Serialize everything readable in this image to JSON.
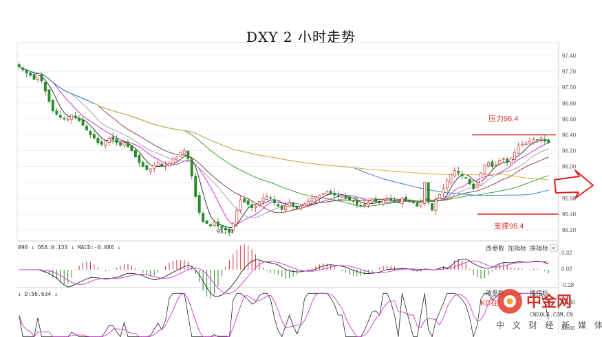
{
  "title": "DXY 2 小时走势",
  "chart_data": {
    "type": "candlestick",
    "title": "DXY 2 小时走势",
    "ylim": [
      95.1,
      97.5
    ],
    "yticks": [
      "97.40",
      "97.20",
      "97.00",
      "96.80",
      "96.60",
      "96.40",
      "96.20",
      "96.00",
      "95.80",
      "95.60",
      "95.40",
      "95.20"
    ],
    "resistance": {
      "label": "压力96.4",
      "value": 96.4
    },
    "support": {
      "label": "支撑95.4",
      "value": 95.4
    },
    "low_annotation": "95.14",
    "price_path": [
      97.26,
      97.22,
      97.18,
      97.15,
      97.1,
      97.17,
      97.08,
      96.95,
      96.82,
      96.7,
      96.66,
      96.62,
      96.6,
      96.6,
      96.65,
      96.62,
      96.58,
      96.52,
      96.46,
      96.4,
      96.36,
      96.3,
      96.28,
      96.32,
      96.36,
      96.34,
      96.3,
      96.27,
      96.3,
      96.25,
      96.2,
      96.12,
      96.05,
      96.0,
      95.96,
      95.97,
      96.02,
      96.05,
      96.0,
      96.02,
      96.04,
      96.1,
      96.12,
      96.18,
      96.2,
      96.1,
      95.88,
      95.62,
      95.42,
      95.3,
      95.28,
      95.25,
      95.3,
      95.25,
      95.22,
      95.2,
      95.18,
      95.28,
      95.45,
      95.58,
      95.55,
      95.52,
      95.48,
      95.5,
      95.56,
      95.6,
      95.62,
      95.6,
      95.54,
      95.5,
      95.46,
      95.5,
      95.54,
      95.5,
      95.47,
      95.5,
      95.53,
      95.56,
      95.6,
      95.62,
      95.64,
      95.66,
      95.68,
      95.66,
      95.64,
      95.62,
      95.64,
      95.6,
      95.58,
      95.56,
      95.52,
      95.5,
      95.52,
      95.55,
      95.58,
      95.56,
      95.54,
      95.58,
      95.6,
      95.58,
      95.56,
      95.54,
      95.6,
      95.58,
      95.56,
      95.54,
      95.5,
      95.55,
      95.8,
      95.55,
      95.45,
      95.58,
      95.65,
      95.72,
      95.82,
      95.9,
      95.95,
      95.92,
      95.88,
      95.85,
      95.78,
      95.72,
      95.78,
      95.92,
      96.02,
      96.05,
      96.0,
      96.02,
      96.08,
      96.1,
      96.06,
      96.1,
      96.18,
      96.26,
      96.28,
      96.3,
      96.32,
      96.34,
      96.34,
      96.36,
      96.32,
      96.3
    ],
    "indicators": {
      "macd_label": "090 ↓ DEA:0.133 ↓ MACD:-0.086 ↓",
      "macd_ticks": [
        "0.32",
        "0.02",
        "-0.28"
      ],
      "kd_label": "↓ D:56.634 ↓",
      "kd_ticks": [
        "80.00",
        "20.00"
      ],
      "kd_annotation": "KD在"
    }
  },
  "panel_buttons": {
    "change_params": "改参数",
    "add_indicator": "加指标",
    "switch_indicator": "换指标",
    "close": "×"
  },
  "watermark": {
    "logo_text": "中金网",
    "url": "CNGOLD.COM.CN",
    "tagline": "中 文 财 经 新 媒 体"
  },
  "colors": {
    "candle_up": "#d03030",
    "candle_down": "#2a8a2a",
    "resistance": "#e03030",
    "support": "#e03030",
    "ma_black": "#222222",
    "ma_magenta": "#cc33cc",
    "ma_gray": "#9a9aaa",
    "ma_brown": "#8a3030",
    "ma_green": "#3aa03a",
    "ma_blue": "#3b7fd0",
    "ma_gold": "#d8b040",
    "arrow": "#e02020"
  }
}
